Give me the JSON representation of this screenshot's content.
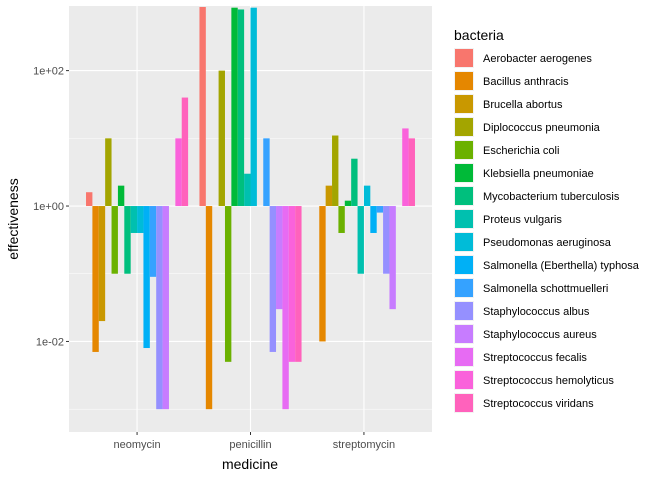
{
  "chart_data": {
    "type": "bar",
    "xlabel": "medicine",
    "ylabel": "effectiveness",
    "y_scale": "log10",
    "ylim": [
      0.00046,
      900
    ],
    "y_baseline": 1,
    "y_ticks": [
      {
        "value": 0.01,
        "label": "1e-02"
      },
      {
        "value": 1,
        "label": "1e+00"
      },
      {
        "value": 100,
        "label": "1e+02"
      }
    ],
    "categories": [
      "neomycin",
      "penicillin",
      "streptomycin"
    ],
    "legend": {
      "title": "bacteria",
      "position": "right"
    },
    "grid": true,
    "series": [
      {
        "name": "Aerobacter aerogenes",
        "color": "#F8766D",
        "values": [
          1.6,
          870,
          1
        ]
      },
      {
        "name": "Bacillus anthracis",
        "color": "#E58700",
        "values": [
          0.007,
          0.001,
          0.01
        ]
      },
      {
        "name": "Brucella abortus",
        "color": "#C99800",
        "values": [
          0.02,
          1,
          2
        ]
      },
      {
        "name": "Diplococcus pneumonia",
        "color": "#A3A500",
        "values": [
          10,
          100,
          11
        ]
      },
      {
        "name": "Escherichia coli",
        "color": "#6BB100",
        "values": [
          0.1,
          0.005,
          0.4
        ]
      },
      {
        "name": "Klebsiella pneumoniae",
        "color": "#00BA38",
        "values": [
          2,
          850,
          1.2
        ]
      },
      {
        "name": "Mycobacterium tuberculosis",
        "color": "#00BF7D",
        "values": [
          0.1,
          800,
          5
        ]
      },
      {
        "name": "Proteus vulgaris",
        "color": "#00C0AF",
        "values": [
          0.4,
          3,
          0.1
        ]
      },
      {
        "name": "Pseudomonas aeruginosa",
        "color": "#00BCD8",
        "values": [
          0.4,
          850,
          2
        ]
      },
      {
        "name": "Salmonella (Eberthella) typhosa",
        "color": "#00B0F6",
        "values": [
          0.008,
          1,
          0.4
        ]
      },
      {
        "name": "Salmonella schottmuelleri",
        "color": "#35A2FF",
        "values": [
          0.09,
          10,
          0.8
        ]
      },
      {
        "name": "Staphylococcus albus",
        "color": "#9590FF",
        "values": [
          0.001,
          0.007,
          0.1
        ]
      },
      {
        "name": "Staphylococcus aureus",
        "color": "#C77CFF",
        "values": [
          0.001,
          0.03,
          0.03
        ]
      },
      {
        "name": "Streptococcus fecalis",
        "color": "#E76BF3",
        "values": [
          1,
          0.001,
          1
        ]
      },
      {
        "name": "Streptococcus hemolyticus",
        "color": "#FA62DB",
        "values": [
          10,
          0.005,
          14
        ]
      },
      {
        "name": "Streptococcus viridans",
        "color": "#FF62BC",
        "values": [
          40,
          0.005,
          10
        ]
      }
    ]
  }
}
